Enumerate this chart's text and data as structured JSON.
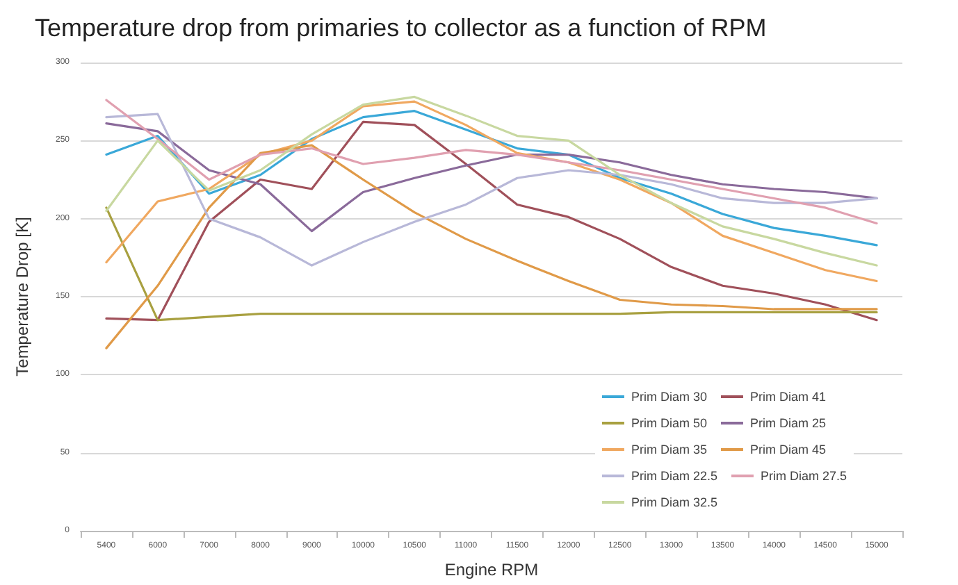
{
  "chart_data": {
    "type": "line",
    "title": "Temperature drop from primaries to collector as a function of RPM",
    "xlabel": "Engine RPM",
    "ylabel": "Temperature Drop [K]",
    "categories": [
      "5400",
      "6000",
      "7000",
      "8000",
      "9000",
      "10000",
      "10500",
      "11000",
      "11500",
      "12000",
      "12500",
      "13000",
      "13500",
      "14000",
      "14500",
      "15000"
    ],
    "ylim": [
      0,
      300
    ],
    "yticks": [
      0,
      50,
      100,
      150,
      200,
      250,
      300
    ],
    "grid": "y",
    "legend": "bottom right",
    "marker": "none",
    "line_style": "solid",
    "series": [
      {
        "name": "Prim Diam 30",
        "color": "#3aa8d8",
        "values": [
          241,
          253,
          216,
          228,
          251,
          265,
          269,
          257,
          245,
          241,
          226,
          216,
          203,
          194,
          189,
          183
        ]
      },
      {
        "name": "Prim Diam 41",
        "color": "#a0505a",
        "values": [
          136,
          135,
          198,
          225,
          219,
          262,
          260,
          235,
          209,
          201,
          187,
          169,
          157,
          152,
          145,
          135
        ]
      },
      {
        "name": "Prim Diam 50",
        "color": "#a8a040",
        "values": [
          207,
          135,
          137,
          139,
          139,
          139,
          139,
          139,
          139,
          139,
          139,
          140,
          140,
          140,
          140,
          140
        ]
      },
      {
        "name": "Prim Diam 25",
        "color": "#8a6a9a",
        "values": [
          261,
          256,
          231,
          222,
          192,
          217,
          226,
          234,
          241,
          241,
          236,
          228,
          222,
          219,
          217,
          213
        ]
      },
      {
        "name": "Prim Diam 35",
        "color": "#f0a860",
        "values": [
          172,
          211,
          219,
          241,
          250,
          272,
          275,
          260,
          242,
          236,
          225,
          210,
          189,
          178,
          167,
          160
        ]
      },
      {
        "name": "Prim Diam 45",
        "color": "#e09a48",
        "values": [
          117,
          157,
          207,
          242,
          247,
          225,
          204,
          187,
          173,
          160,
          148,
          145,
          144,
          142,
          142,
          142
        ]
      },
      {
        "name": "Prim Diam 22.5",
        "color": "#b8b8d8",
        "values": [
          265,
          267,
          200,
          188,
          170,
          185,
          198,
          209,
          226,
          231,
          228,
          222,
          213,
          210,
          210,
          213
        ]
      },
      {
        "name": "Prim Diam 27.5",
        "color": "#e0a0b0",
        "values": [
          276,
          251,
          225,
          241,
          245,
          235,
          239,
          244,
          241,
          236,
          231,
          225,
          219,
          213,
          207,
          197
        ]
      },
      {
        "name": "Prim Diam 32.5",
        "color": "#c8d8a0",
        "values": [
          205,
          250,
          218,
          231,
          254,
          273,
          278,
          266,
          253,
          250,
          228,
          210,
          195,
          187,
          178,
          170
        ]
      }
    ]
  }
}
